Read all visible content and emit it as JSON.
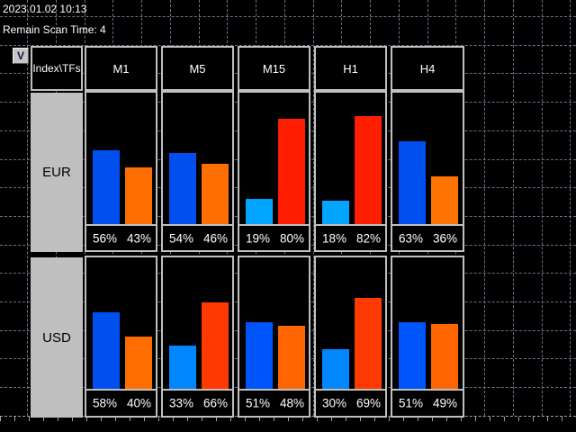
{
  "topbar": {
    "datetime": "2023.01.02 10:13",
    "remain_scan": "Remain Scan Time: 4"
  },
  "panel": {
    "collapse_label": "V",
    "corner_header": "Index\\TFs",
    "timeframes": [
      "M1",
      "M5",
      "M15",
      "H1",
      "H4"
    ],
    "rows": [
      {
        "label": "EUR",
        "cells": [
          {
            "left": "56%",
            "right": "43%",
            "left_value": 56,
            "right_value": 43,
            "left_color": "#0050f0",
            "right_color": "#ff6e00"
          },
          {
            "left": "54%",
            "right": "46%",
            "left_value": 54,
            "right_value": 46,
            "left_color": "#0050f0",
            "right_color": "#ff6e00"
          },
          {
            "left": "19%",
            "right": "80%",
            "left_value": 19,
            "right_value": 80,
            "left_color": "#00a5ff",
            "right_color": "#ff1e00"
          },
          {
            "left": "18%",
            "right": "82%",
            "left_value": 18,
            "right_value": 82,
            "left_color": "#00a5ff",
            "right_color": "#ff1e00"
          },
          {
            "left": "63%",
            "right": "36%",
            "left_value": 63,
            "right_value": 36,
            "left_color": "#0050f0",
            "right_color": "#ff7300"
          }
        ]
      },
      {
        "label": "USD",
        "cells": [
          {
            "left": "58%",
            "right": "40%",
            "left_value": 58,
            "right_value": 40,
            "left_color": "#0050f0",
            "right_color": "#ff6e00"
          },
          {
            "left": "33%",
            "right": "66%",
            "left_value": 33,
            "right_value": 66,
            "left_color": "#0087ff",
            "right_color": "#ff3a00"
          },
          {
            "left": "51%",
            "right": "48%",
            "left_value": 51,
            "right_value": 48,
            "left_color": "#0055fa",
            "right_color": "#ff6600"
          },
          {
            "left": "30%",
            "right": "69%",
            "left_value": 30,
            "right_value": 69,
            "left_color": "#0087ff",
            "right_color": "#ff3a00"
          },
          {
            "left": "51%",
            "right": "49%",
            "left_value": 51,
            "right_value": 49,
            "left_color": "#0055fa",
            "right_color": "#ff6600"
          }
        ]
      }
    ]
  },
  "colors": {
    "background": "#000000",
    "grid": "#64758a",
    "time_axis": "#95a3b2",
    "cell_border": "#c0c0c0",
    "label_cell_bg": "#c0c0c0",
    "header_text": "#ffffff",
    "percent_text": "#ffffff",
    "row_label_text": "#000000"
  }
}
